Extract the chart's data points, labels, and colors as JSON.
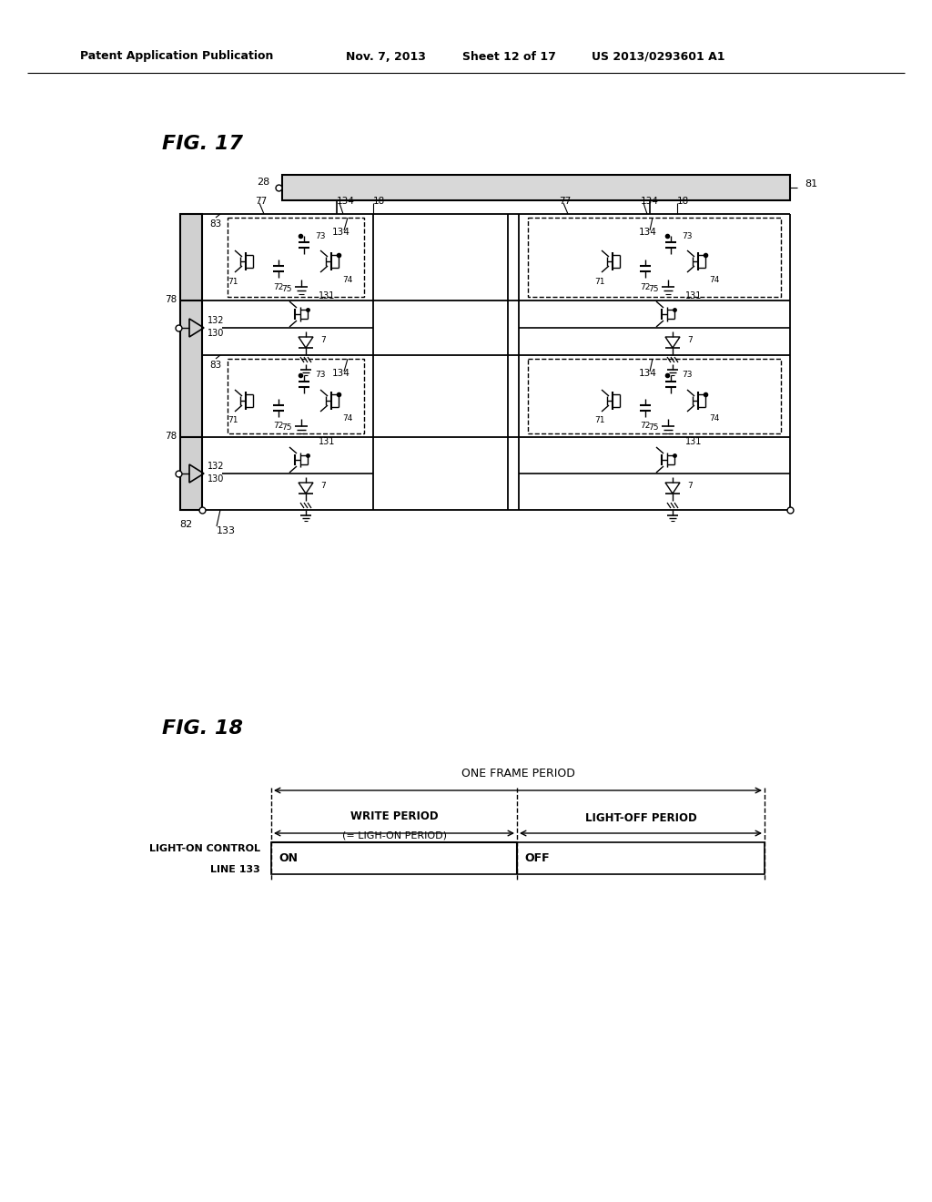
{
  "bg_color": "#ffffff",
  "fig_width": 10.24,
  "fig_height": 13.2,
  "header_text": "Patent Application Publication",
  "header_date": "Nov. 7, 2013",
  "header_sheet": "Sheet 12 of 17",
  "header_patent": "US 2013/0293601 A1",
  "fig17_label": "FIG. 17",
  "fig18_label": "FIG. 18"
}
